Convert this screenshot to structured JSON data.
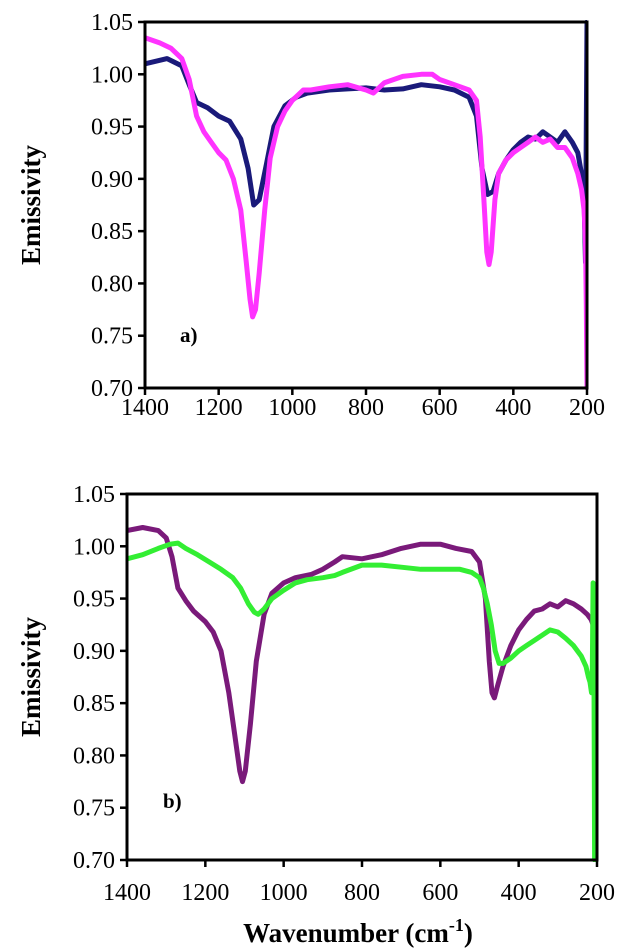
{
  "chart_data": [
    {
      "type": "line",
      "panel_label": "a)",
      "title": "",
      "xlabel": "",
      "ylabel": "Emissivity",
      "xlim": [
        1400,
        200
      ],
      "ylim": [
        0.7,
        1.05
      ],
      "x_ticks": [
        "1400",
        "1200",
        "1000",
        "800",
        "600",
        "400",
        "200"
      ],
      "y_ticks": [
        "0.70",
        "0.75",
        "0.80",
        "0.85",
        "0.90",
        "0.95",
        "1.00",
        "1.05"
      ],
      "grid": false,
      "legend": "none",
      "series": [
        {
          "color": "#1a1a7a",
          "x": [
            1400,
            1340,
            1300,
            1280,
            1260,
            1230,
            1200,
            1170,
            1140,
            1120,
            1105,
            1090,
            1070,
            1050,
            1020,
            990,
            960,
            900,
            850,
            800,
            750,
            700,
            650,
            600,
            560,
            520,
            500,
            485,
            470,
            455,
            440,
            420,
            400,
            380,
            360,
            340,
            320,
            300,
            280,
            260,
            240,
            225,
            215,
            208,
            204,
            202,
            200
          ],
          "y": [
            1.01,
            1.015,
            1.008,
            0.99,
            0.973,
            0.968,
            0.96,
            0.955,
            0.938,
            0.91,
            0.875,
            0.88,
            0.915,
            0.95,
            0.97,
            0.978,
            0.982,
            0.985,
            0.986,
            0.987,
            0.985,
            0.986,
            0.99,
            0.988,
            0.985,
            0.978,
            0.96,
            0.91,
            0.885,
            0.888,
            0.905,
            0.918,
            0.928,
            0.935,
            0.94,
            0.938,
            0.945,
            0.94,
            0.935,
            0.945,
            0.935,
            0.925,
            0.905,
            0.88,
            0.82,
            0.95,
            1.05
          ]
        },
        {
          "color": "#ff33ff",
          "x": [
            1400,
            1360,
            1330,
            1300,
            1280,
            1260,
            1240,
            1220,
            1200,
            1180,
            1160,
            1140,
            1125,
            1115,
            1108,
            1100,
            1090,
            1075,
            1060,
            1040,
            1020,
            1000,
            970,
            950,
            900,
            850,
            800,
            780,
            750,
            700,
            650,
            620,
            600,
            560,
            520,
            500,
            490,
            480,
            472,
            466,
            460,
            450,
            440,
            420,
            400,
            380,
            360,
            340,
            320,
            300,
            280,
            260,
            240,
            225,
            215,
            208,
            204,
            202,
            200
          ],
          "y": [
            1.035,
            1.03,
            1.025,
            1.015,
            0.995,
            0.96,
            0.945,
            0.935,
            0.925,
            0.918,
            0.9,
            0.87,
            0.82,
            0.785,
            0.768,
            0.775,
            0.81,
            0.87,
            0.92,
            0.95,
            0.965,
            0.975,
            0.985,
            0.985,
            0.988,
            0.99,
            0.985,
            0.982,
            0.992,
            0.998,
            1.0,
            1.0,
            0.995,
            0.99,
            0.985,
            0.975,
            0.94,
            0.88,
            0.83,
            0.818,
            0.83,
            0.88,
            0.905,
            0.918,
            0.925,
            0.93,
            0.935,
            0.94,
            0.935,
            0.938,
            0.93,
            0.93,
            0.92,
            0.905,
            0.89,
            0.87,
            0.84,
            0.78,
            0.7
          ]
        }
      ]
    },
    {
      "type": "line",
      "panel_label": "b)",
      "title": "",
      "xlabel": "Wavenumber (cm-1)",
      "xlabel_main": "Wavenumber (cm",
      "xlabel_sup": "-1",
      "xlabel_close": ")",
      "ylabel": "Emissivity",
      "xlim": [
        1400,
        200
      ],
      "ylim": [
        0.7,
        1.05
      ],
      "x_ticks": [
        "1400",
        "1200",
        "1000",
        "800",
        "600",
        "400",
        "200"
      ],
      "y_ticks": [
        "0.70",
        "0.75",
        "0.80",
        "0.85",
        "0.90",
        "0.95",
        "1.00",
        "1.05"
      ],
      "grid": false,
      "legend": "none",
      "series": [
        {
          "color": "#7a1a7a",
          "x": [
            1400,
            1360,
            1320,
            1300,
            1285,
            1270,
            1250,
            1230,
            1200,
            1180,
            1160,
            1140,
            1125,
            1112,
            1105,
            1098,
            1085,
            1070,
            1050,
            1030,
            1000,
            970,
            930,
            900,
            870,
            850,
            800,
            750,
            700,
            650,
            600,
            560,
            520,
            500,
            485,
            475,
            468,
            462,
            455,
            440,
            420,
            400,
            380,
            360,
            340,
            320,
            300,
            280,
            260,
            240,
            225,
            215,
            210
          ],
          "y": [
            1.015,
            1.018,
            1.015,
            1.008,
            0.99,
            0.96,
            0.948,
            0.938,
            0.928,
            0.918,
            0.9,
            0.86,
            0.82,
            0.785,
            0.775,
            0.785,
            0.83,
            0.89,
            0.935,
            0.955,
            0.965,
            0.97,
            0.973,
            0.978,
            0.985,
            0.99,
            0.988,
            0.992,
            0.998,
            1.002,
            1.002,
            0.998,
            0.995,
            0.985,
            0.95,
            0.89,
            0.86,
            0.855,
            0.865,
            0.885,
            0.905,
            0.92,
            0.93,
            0.938,
            0.94,
            0.945,
            0.942,
            0.948,
            0.945,
            0.94,
            0.935,
            0.93,
            0.925
          ]
        },
        {
          "color": "#33ee33",
          "x": [
            1400,
            1360,
            1320,
            1290,
            1270,
            1250,
            1220,
            1190,
            1160,
            1130,
            1110,
            1090,
            1075,
            1065,
            1050,
            1030,
            1000,
            970,
            940,
            900,
            870,
            850,
            800,
            750,
            700,
            650,
            600,
            550,
            520,
            500,
            490,
            480,
            470,
            460,
            450,
            440,
            420,
            400,
            380,
            360,
            340,
            320,
            300,
            280,
            260,
            240,
            228,
            222,
            218,
            214,
            212,
            210,
            208,
            206
          ],
          "y": [
            0.988,
            0.992,
            0.998,
            1.002,
            1.003,
            0.998,
            0.992,
            0.985,
            0.978,
            0.97,
            0.96,
            0.945,
            0.937,
            0.935,
            0.94,
            0.95,
            0.958,
            0.965,
            0.968,
            0.97,
            0.972,
            0.975,
            0.982,
            0.982,
            0.98,
            0.978,
            0.978,
            0.978,
            0.975,
            0.97,
            0.96,
            0.945,
            0.925,
            0.9,
            0.888,
            0.888,
            0.893,
            0.9,
            0.905,
            0.91,
            0.915,
            0.92,
            0.918,
            0.912,
            0.905,
            0.895,
            0.885,
            0.875,
            0.87,
            0.86,
            0.88,
            0.965,
            0.9,
            0.7
          ]
        }
      ]
    }
  ]
}
